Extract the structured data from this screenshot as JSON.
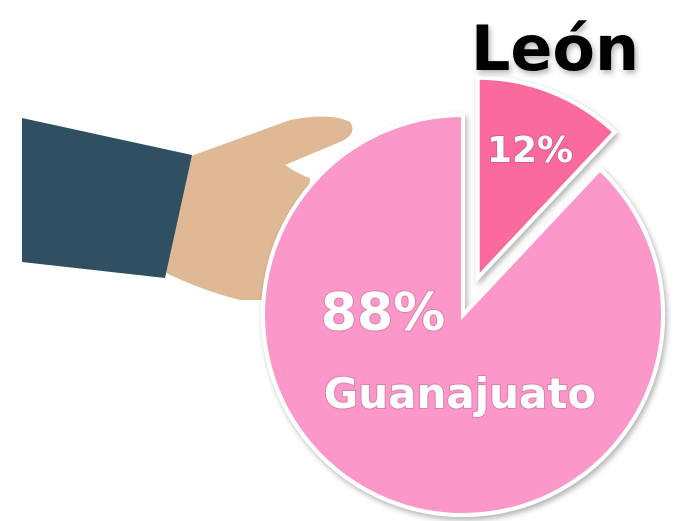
{
  "chart_data": {
    "type": "pie",
    "categories": [
      "León",
      "Guanajuato"
    ],
    "values": [
      12,
      88
    ],
    "value_labels": [
      "12%",
      "88%"
    ],
    "colors": [
      "#fb6a9d",
      "#fc97c9"
    ]
  }
}
